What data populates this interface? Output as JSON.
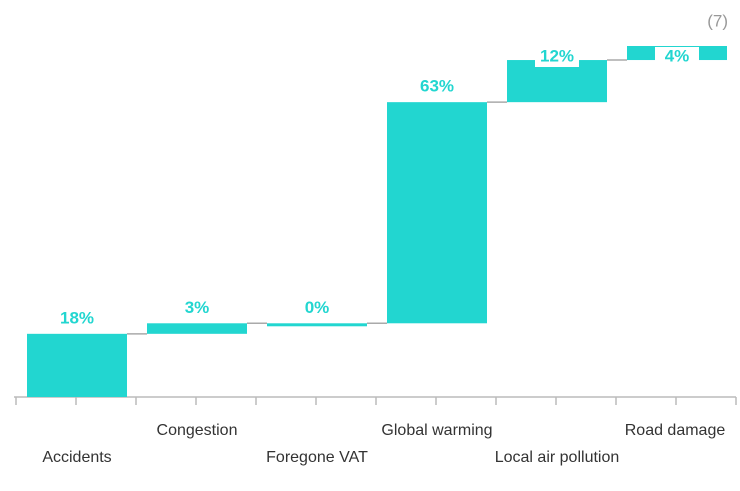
{
  "chart_data": {
    "type": "waterfall",
    "annotation": "(7)",
    "categories": [
      "Accidents",
      "Congestion",
      "Foregone VAT",
      "Global warming",
      "Local air pollution",
      "Road damage"
    ],
    "values": [
      18,
      3,
      0,
      63,
      12,
      4
    ],
    "value_labels": [
      "18%",
      "3%",
      "0%",
      "63%",
      "12%",
      "4%"
    ],
    "color": "#22d6d0",
    "ylim": [
      0,
      100
    ]
  }
}
